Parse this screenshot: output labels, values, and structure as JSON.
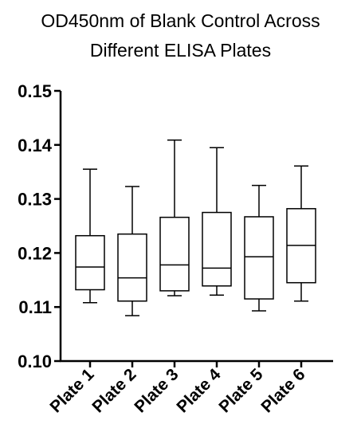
{
  "chart_data": {
    "type": "box",
    "title": "OD450nm of Blank Control Across",
    "subtitle": "Different ELISA Plates",
    "xlabel": "",
    "ylabel": "",
    "ylim": [
      0.1,
      0.15
    ],
    "y_ticks": [
      "0.10",
      "0.11",
      "0.12",
      "0.13",
      "0.14",
      "0.15"
    ],
    "y_tick_values": [
      0.1,
      0.11,
      0.12,
      0.13,
      0.14,
      0.15
    ],
    "categories": [
      "Plate 1",
      "Plate 2",
      "Plate 3",
      "Plate 4",
      "Plate 5",
      "Plate 6"
    ],
    "boxes": [
      {
        "min": 0.1108,
        "q1": 0.1132,
        "median": 0.1174,
        "q3": 0.1232,
        "max": 0.1355
      },
      {
        "min": 0.1084,
        "q1": 0.1111,
        "median": 0.1154,
        "q3": 0.1235,
        "max": 0.1323
      },
      {
        "min": 0.1121,
        "q1": 0.113,
        "median": 0.1178,
        "q3": 0.1266,
        "max": 0.1409
      },
      {
        "min": 0.1122,
        "q1": 0.1139,
        "median": 0.1172,
        "q3": 0.1275,
        "max": 0.1395
      },
      {
        "min": 0.1093,
        "q1": 0.1115,
        "median": 0.1193,
        "q3": 0.1267,
        "max": 0.1325
      },
      {
        "min": 0.1111,
        "q1": 0.1145,
        "median": 0.1214,
        "q3": 0.1282,
        "max": 0.1361
      }
    ],
    "grid": false,
    "legend": "none",
    "color": "#000000"
  }
}
